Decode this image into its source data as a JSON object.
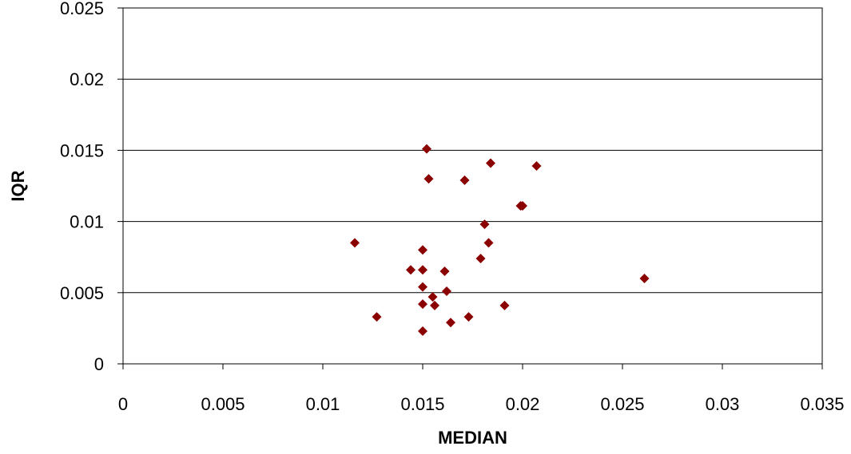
{
  "chart_data": {
    "type": "scatter",
    "title": "",
    "xlabel": "MEDIAN",
    "ylabel": "IQR",
    "xlim": [
      0,
      0.035
    ],
    "ylim": [
      0,
      0.025
    ],
    "x_ticks": [
      "0",
      "0.005",
      "0.01",
      "0.015",
      "0.02",
      "0.025",
      "0.03",
      "0.035"
    ],
    "y_ticks": [
      "0",
      "0.005",
      "0.01",
      "0.015",
      "0.02",
      "0.025"
    ],
    "grid": "horizontal",
    "legend": "none",
    "marker": "diamond",
    "marker_color": "#8b0000",
    "series": [
      {
        "points": [
          {
            "x": 0.0116,
            "y": 0.0085
          },
          {
            "x": 0.0127,
            "y": 0.0033
          },
          {
            "x": 0.0144,
            "y": 0.0066
          },
          {
            "x": 0.015,
            "y": 0.008
          },
          {
            "x": 0.015,
            "y": 0.0066
          },
          {
            "x": 0.015,
            "y": 0.0054
          },
          {
            "x": 0.015,
            "y": 0.0042
          },
          {
            "x": 0.015,
            "y": 0.0023
          },
          {
            "x": 0.0152,
            "y": 0.0151
          },
          {
            "x": 0.0153,
            "y": 0.013
          },
          {
            "x": 0.0155,
            "y": 0.0047
          },
          {
            "x": 0.0156,
            "y": 0.0041
          },
          {
            "x": 0.0161,
            "y": 0.0065
          },
          {
            "x": 0.0162,
            "y": 0.0051
          },
          {
            "x": 0.0164,
            "y": 0.0029
          },
          {
            "x": 0.0171,
            "y": 0.0129
          },
          {
            "x": 0.0173,
            "y": 0.0033
          },
          {
            "x": 0.0179,
            "y": 0.0074
          },
          {
            "x": 0.0181,
            "y": 0.0098
          },
          {
            "x": 0.0183,
            "y": 0.0085
          },
          {
            "x": 0.0184,
            "y": 0.0141
          },
          {
            "x": 0.0191,
            "y": 0.0041
          },
          {
            "x": 0.0199,
            "y": 0.0111
          },
          {
            "x": 0.02,
            "y": 0.0111
          },
          {
            "x": 0.0207,
            "y": 0.0139
          },
          {
            "x": 0.0261,
            "y": 0.006
          }
        ]
      }
    ]
  }
}
